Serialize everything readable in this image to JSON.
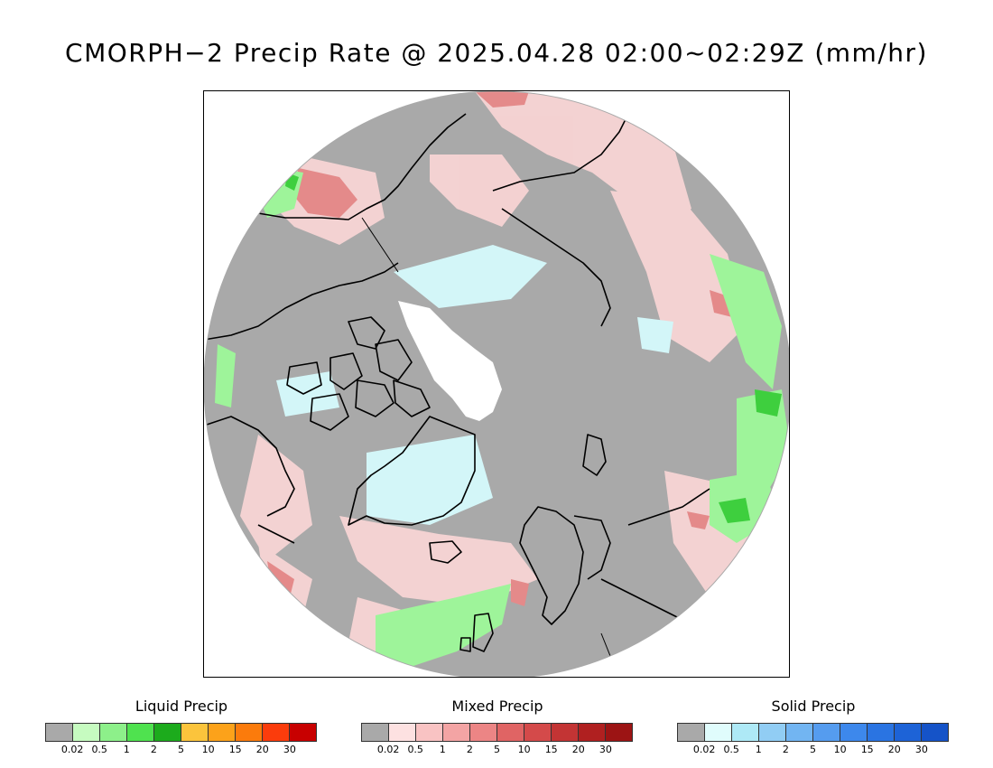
{
  "title": "CMORPH−2 Precip Rate @ 2025.04.28 02:00~02:29Z (mm/hr)",
  "map": {
    "projection": "north-polar-stereographic",
    "background": "#a9a9a9",
    "coastline_color": "#000000"
  },
  "legends": [
    {
      "name": "liquid",
      "title": "Liquid Precip",
      "colors": [
        "#a9a9a9",
        "#c6fbc0",
        "#8df08a",
        "#4fe24f",
        "#1cab1c",
        "#fbc43c",
        "#fca21a",
        "#fb7b0c",
        "#fb3c0c",
        "#c80000"
      ],
      "ticks": [
        "0.02",
        "0.5",
        "1",
        "2",
        "5",
        "10",
        "15",
        "20",
        "30"
      ]
    },
    {
      "name": "mixed",
      "title": "Mixed Precip",
      "colors": [
        "#a9a9a9",
        "#fde1e1",
        "#f9c3c3",
        "#f3a4a4",
        "#ec8585",
        "#e06464",
        "#d44a4a",
        "#c33434",
        "#b02020",
        "#9c1414"
      ],
      "ticks": [
        "0.02",
        "0.5",
        "1",
        "2",
        "5",
        "10",
        "15",
        "20",
        "30"
      ]
    },
    {
      "name": "solid",
      "title": "Solid Precip",
      "colors": [
        "#a9a9a9",
        "#e0fcfc",
        "#aee9f6",
        "#91cdf4",
        "#72b5f2",
        "#559cef",
        "#3d88ec",
        "#2a74e2",
        "#1d63d7",
        "#1553c8"
      ],
      "ticks": [
        "0.02",
        "0.5",
        "1",
        "2",
        "5",
        "10",
        "15",
        "20",
        "30"
      ]
    }
  ]
}
